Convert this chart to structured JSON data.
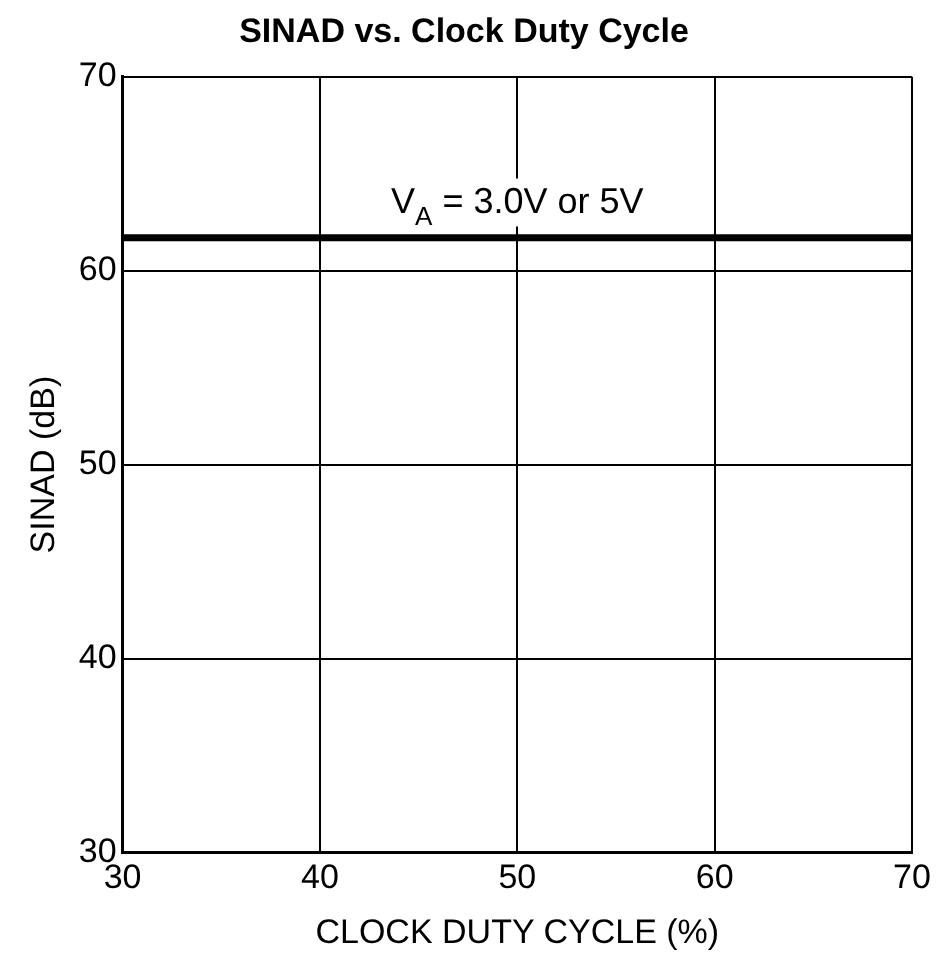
{
  "chart_data": {
    "type": "line",
    "title": "SINAD vs. Clock Duty Cycle",
    "xlabel": "CLOCK DUTY CYCLE (%)",
    "ylabel": "SINAD (dB)",
    "x": [
      30,
      70
    ],
    "series": [
      {
        "color": "#000000",
        "values": [
          61.7,
          61.7
        ]
      }
    ],
    "xlim": [
      30,
      70
    ],
    "xticks": [
      30,
      40,
      50,
      60,
      70
    ],
    "ylim": [
      30,
      70
    ],
    "yticks": [
      30,
      40,
      50,
      60,
      70
    ],
    "grid": true,
    "legend": false,
    "marker": "none",
    "line_style": "solid",
    "annotations": [
      "V$_{A}$ = 3.0V or 5V"
    ]
  }
}
